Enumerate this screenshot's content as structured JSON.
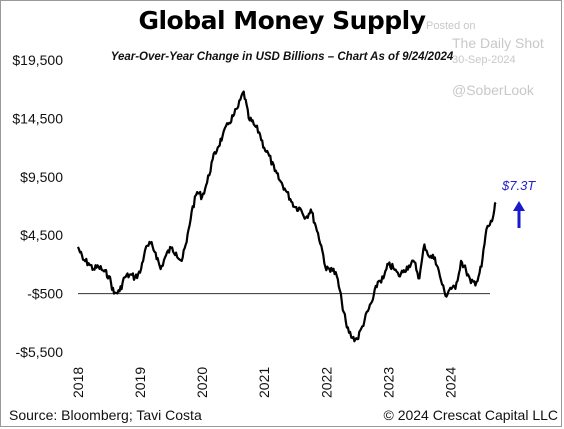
{
  "header": {
    "title": "Global Money Supply",
    "subtitle": "Year-Over-Year Change in USD Billions – Chart As of 9/24/2024"
  },
  "watermark": {
    "posted": "Posted on",
    "source": "The Daily Shot",
    "date": "30-Sep-2024",
    "handle": "@SoberLook"
  },
  "footer": {
    "source": "Source: Bloomberg; Tavi Costa",
    "copyright": "© 2024 Crescat Capital LLC"
  },
  "annotation": {
    "label": "$7.3T",
    "color": "#2222cc",
    "arrow_icon": "up-arrow-icon"
  },
  "chart_data": {
    "type": "line",
    "title": "Global Money Supply",
    "subtitle": "Year-Over-Year Change in USD Billions – Chart As of 9/24/2024",
    "xlabel": "",
    "ylabel": "",
    "ylim": [
      -5500,
      19500
    ],
    "xlim": [
      2018.0,
      2024.75
    ],
    "yticks": [
      19500,
      14500,
      9500,
      4500,
      -500,
      -5500
    ],
    "ytick_labels": [
      "$19,500",
      "$14,500",
      "$9,500",
      "$4,500",
      "-$500",
      "-$5,500"
    ],
    "xticks": [
      2018,
      2019,
      2020,
      2021,
      2022,
      2023,
      2024
    ],
    "xtick_labels": [
      "2018",
      "2019",
      "2020",
      "2021",
      "2022",
      "2023",
      "2024"
    ],
    "reference_line": -500,
    "grid": false,
    "line_color": "#000000",
    "series": [
      {
        "x": [
          2018.0,
          2018.08,
          2018.17,
          2018.25,
          2018.33,
          2018.42,
          2018.5,
          2018.58,
          2018.67,
          2018.75,
          2018.83,
          2018.92,
          2019.0,
          2019.08,
          2019.17,
          2019.25,
          2019.33,
          2019.42,
          2019.5,
          2019.58,
          2019.67,
          2019.75,
          2019.83,
          2019.92,
          2020.0,
          2020.08,
          2020.17,
          2020.25,
          2020.33,
          2020.42,
          2020.5,
          2020.58,
          2020.67,
          2020.75,
          2020.83,
          2020.92,
          2021.0,
          2021.08,
          2021.17,
          2021.25,
          2021.33,
          2021.42,
          2021.5,
          2021.58,
          2021.67,
          2021.75,
          2021.83,
          2021.92,
          2022.0,
          2022.08,
          2022.17,
          2022.25,
          2022.33,
          2022.42,
          2022.5,
          2022.58,
          2022.67,
          2022.75,
          2022.83,
          2022.92,
          2023.0,
          2023.08,
          2023.17,
          2023.25,
          2023.33,
          2023.42,
          2023.5,
          2023.58,
          2023.67,
          2023.75,
          2023.83,
          2023.92,
          2024.0,
          2024.08,
          2024.17,
          2024.25,
          2024.33,
          2024.42,
          2024.5,
          2024.58,
          2024.67,
          2024.73
        ],
        "y": [
          3500,
          2400,
          2100,
          1600,
          1800,
          1400,
          1000,
          -500,
          -300,
          900,
          1100,
          900,
          1300,
          3200,
          3800,
          3000,
          1600,
          2800,
          3400,
          3000,
          2300,
          3900,
          6500,
          8200,
          7800,
          9000,
          11000,
          12000,
          13000,
          14000,
          14700,
          15500,
          16800,
          14500,
          14000,
          13300,
          12000,
          11300,
          10000,
          9200,
          8500,
          7600,
          6900,
          6800,
          6000,
          6700,
          5300,
          3600,
          1500,
          1700,
          1000,
          -1200,
          -3400,
          -4300,
          -4400,
          -3300,
          -2000,
          -1000,
          500,
          800,
          2000,
          1700,
          1000,
          1500,
          1900,
          2200,
          800,
          3700,
          2600,
          2600,
          1000,
          -700,
          0,
          -100,
          2300,
          1500,
          400,
          500,
          1800,
          5000,
          5700,
          7300
        ]
      }
    ]
  }
}
